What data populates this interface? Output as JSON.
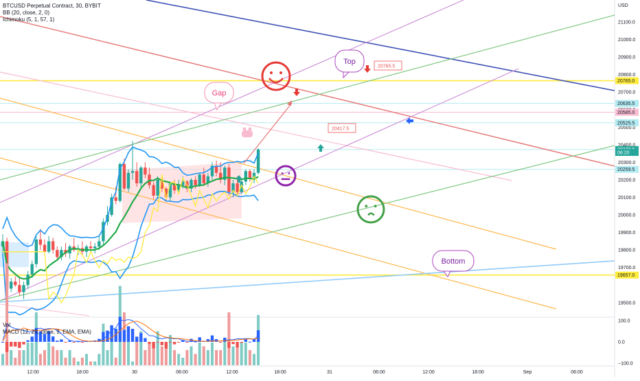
{
  "header": {
    "symbol": "BTCUSD Perpetual Contract, 30, BYBIT",
    "bb": "BB (20, close, 2, 0)",
    "ichimoku": "Ichimoku (5, 1, 57, 1)"
  },
  "subpane": {
    "vol": "Vol",
    "macd": "MACD (12, 26, close, 9, EMA, EMA)"
  },
  "colors": {
    "up": "#26a69a",
    "down": "#ef5350",
    "bb_mid": "#22ab4a",
    "bb_band": "#2196f3",
    "ichimoku": "#ffeb3b",
    "red_line": "#e57373",
    "purple_line": "#ce93d8",
    "green_line": "#81c784",
    "orange_line": "#ffb74d",
    "navy_line": "#3f51b5",
    "blue_line": "#90caf9",
    "pink_line": "#f8bbd0",
    "yellow_level": "#ffeb3b",
    "cyan_level": "#b2ebf2"
  },
  "chart_data": {
    "type": "candlestick",
    "symbol": "BTCUSD",
    "timeframe": "30",
    "currency": "USD",
    "price_axis": {
      "unit": "USD",
      "range": [
        19425,
        21225
      ],
      "ticks": [
        "21100.0",
        "21000.0",
        "20900.0",
        "20800.0",
        "20700.0",
        "20600.0",
        "20500.0",
        "20400.0",
        "20300.0",
        "20200.0",
        "20100.0",
        "20000.0",
        "19900.0",
        "19800.0",
        "19700.0",
        "19500.0"
      ]
    },
    "time_axis": {
      "ticks": [
        "12:00",
        "18:00",
        "30",
        "06:00",
        "12:00",
        "18:00",
        "31",
        "06:00",
        "12:00",
        "18:00",
        "Sep",
        "06:00"
      ]
    },
    "price_labels": [
      {
        "text": "20765.0",
        "value": 20765,
        "style": "yellow"
      },
      {
        "text": "20635.5",
        "value": 20635.5,
        "style": "cyan"
      },
      {
        "text": "20585.0",
        "value": 20585,
        "style": "pink"
      },
      {
        "text": "20525.5",
        "value": 20525.5,
        "style": "cyan"
      },
      {
        "text": "20373.0",
        "value": 20373,
        "style": "green"
      },
      {
        "text": "06:20",
        "value": 20356,
        "style": "green"
      },
      {
        "text": "20259.5",
        "value": 20259.5,
        "style": "cyan"
      },
      {
        "text": "19657.0",
        "value": 19657,
        "style": "yellow"
      }
    ],
    "annotations": [
      {
        "type": "callout",
        "text": "Top"
      },
      {
        "type": "callout",
        "text": "Gap"
      },
      {
        "type": "callout",
        "text": "Bottom"
      },
      {
        "type": "price_note",
        "text": "20765.5"
      },
      {
        "type": "price_note",
        "text": "20417.5"
      }
    ],
    "macd_axis": {
      "range": [
        -110,
        110
      ],
      "ticks": [
        "100.0",
        "0.0",
        "−100.0"
      ]
    },
    "candles": [
      {
        "o": 19820,
        "h": 19890,
        "l": 19780,
        "c": 19850
      },
      {
        "o": 19850,
        "h": 19870,
        "l": 19520,
        "c": 19580
      },
      {
        "o": 19580,
        "h": 19640,
        "l": 19560,
        "c": 19620
      },
      {
        "o": 19620,
        "h": 19650,
        "l": 19590,
        "c": 19600
      },
      {
        "o": 19600,
        "h": 19640,
        "l": 19540,
        "c": 19560
      },
      {
        "o": 19560,
        "h": 19620,
        "l": 19520,
        "c": 19600
      },
      {
        "o": 19600,
        "h": 19680,
        "l": 19580,
        "c": 19660
      },
      {
        "o": 19660,
        "h": 19740,
        "l": 19640,
        "c": 19720
      },
      {
        "o": 19720,
        "h": 19880,
        "l": 19700,
        "c": 19860
      },
      {
        "o": 19860,
        "h": 19920,
        "l": 19800,
        "c": 19830
      },
      {
        "o": 19830,
        "h": 19860,
        "l": 19770,
        "c": 19790
      },
      {
        "o": 19790,
        "h": 19880,
        "l": 19780,
        "c": 19850
      },
      {
        "o": 19850,
        "h": 19870,
        "l": 19780,
        "c": 19800
      },
      {
        "o": 19800,
        "h": 19820,
        "l": 19740,
        "c": 19760
      },
      {
        "o": 19760,
        "h": 19820,
        "l": 19740,
        "c": 19800
      },
      {
        "o": 19800,
        "h": 19840,
        "l": 19760,
        "c": 19780
      },
      {
        "o": 19780,
        "h": 19830,
        "l": 19750,
        "c": 19820
      },
      {
        "o": 19820,
        "h": 19870,
        "l": 19790,
        "c": 19800
      },
      {
        "o": 19800,
        "h": 19830,
        "l": 19770,
        "c": 19810
      },
      {
        "o": 19810,
        "h": 19850,
        "l": 19770,
        "c": 19790
      },
      {
        "o": 19790,
        "h": 19830,
        "l": 19760,
        "c": 19820
      },
      {
        "o": 19820,
        "h": 19850,
        "l": 19790,
        "c": 19810
      },
      {
        "o": 19810,
        "h": 19840,
        "l": 19780,
        "c": 19820
      },
      {
        "o": 19820,
        "h": 19880,
        "l": 19800,
        "c": 19850
      },
      {
        "o": 19850,
        "h": 19980,
        "l": 19830,
        "c": 19960
      },
      {
        "o": 19960,
        "h": 20050,
        "l": 19940,
        "c": 20000
      },
      {
        "o": 20000,
        "h": 20120,
        "l": 19990,
        "c": 20100
      },
      {
        "o": 20100,
        "h": 20160,
        "l": 20060,
        "c": 20080
      },
      {
        "o": 20080,
        "h": 20300,
        "l": 20070,
        "c": 20290
      },
      {
        "o": 20290,
        "h": 20320,
        "l": 20140,
        "c": 20150
      },
      {
        "o": 20150,
        "h": 20260,
        "l": 20130,
        "c": 20240
      },
      {
        "o": 20240,
        "h": 20420,
        "l": 20200,
        "c": 20250
      },
      {
        "o": 20250,
        "h": 20300,
        "l": 20160,
        "c": 20180
      },
      {
        "o": 20180,
        "h": 20280,
        "l": 20160,
        "c": 20270
      },
      {
        "o": 20270,
        "h": 20300,
        "l": 20210,
        "c": 20230
      },
      {
        "o": 20230,
        "h": 20270,
        "l": 20150,
        "c": 20170
      },
      {
        "o": 20170,
        "h": 20190,
        "l": 20090,
        "c": 20110
      },
      {
        "o": 20110,
        "h": 20220,
        "l": 20090,
        "c": 20200
      },
      {
        "o": 20200,
        "h": 20230,
        "l": 20130,
        "c": 20150
      },
      {
        "o": 20150,
        "h": 20160,
        "l": 20080,
        "c": 20100
      },
      {
        "o": 20100,
        "h": 20190,
        "l": 20080,
        "c": 20180
      },
      {
        "o": 20180,
        "h": 20200,
        "l": 20120,
        "c": 20140
      },
      {
        "o": 20140,
        "h": 20200,
        "l": 20120,
        "c": 20170
      },
      {
        "o": 20170,
        "h": 20220,
        "l": 20150,
        "c": 20190
      },
      {
        "o": 20190,
        "h": 20200,
        "l": 20130,
        "c": 20150
      },
      {
        "o": 20150,
        "h": 20210,
        "l": 20130,
        "c": 20200
      },
      {
        "o": 20200,
        "h": 20220,
        "l": 20150,
        "c": 20170
      },
      {
        "o": 20170,
        "h": 20240,
        "l": 20160,
        "c": 20230
      },
      {
        "o": 20230,
        "h": 20270,
        "l": 20170,
        "c": 20180
      },
      {
        "o": 20180,
        "h": 20240,
        "l": 20160,
        "c": 20220
      },
      {
        "o": 20220,
        "h": 20300,
        "l": 20200,
        "c": 20280
      },
      {
        "o": 20280,
        "h": 20310,
        "l": 20220,
        "c": 20240
      },
      {
        "o": 20240,
        "h": 20300,
        "l": 20180,
        "c": 20200
      },
      {
        "o": 20200,
        "h": 20280,
        "l": 20170,
        "c": 20270
      },
      {
        "o": 20270,
        "h": 20290,
        "l": 20110,
        "c": 20130
      },
      {
        "o": 20130,
        "h": 20200,
        "l": 20100,
        "c": 20180
      },
      {
        "o": 20180,
        "h": 20220,
        "l": 20110,
        "c": 20130
      },
      {
        "o": 20130,
        "h": 20200,
        "l": 20120,
        "c": 20190
      },
      {
        "o": 20190,
        "h": 20260,
        "l": 20170,
        "c": 20250
      },
      {
        "o": 20250,
        "h": 20260,
        "l": 20190,
        "c": 20210
      },
      {
        "o": 20210,
        "h": 20260,
        "l": 20180,
        "c": 20240
      },
      {
        "o": 20240,
        "h": 20380,
        "l": 20230,
        "c": 20373
      }
    ]
  }
}
